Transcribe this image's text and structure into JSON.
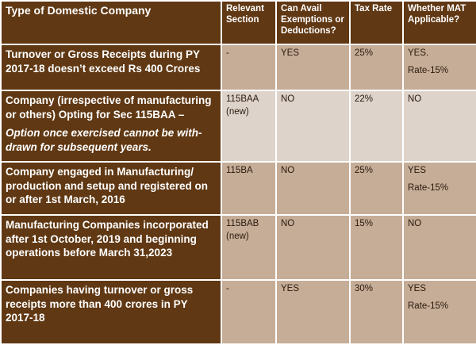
{
  "table": {
    "header": [
      "Type of Domestic Company",
      "Relevant Section",
      "Can Avail Exemptions or Deductions?",
      "Tax Rate",
      "Whether MAT Applicable?"
    ],
    "rows": [
      [
        [
          "Turnover or Gross Receipts during PY 2017-18 doesn’t exceed Rs 400 Crores"
        ],
        [
          "-"
        ],
        [
          "YES"
        ],
        [
          "25%"
        ],
        [
          "YES.",
          "Rate-15%"
        ]
      ],
      [
        [
          "Company (irrespective of manufacturing or others) Opting for Sec 115BAA –",
          "Option once exercised cannot be with-drawn for subsequent years."
        ],
        [
          "115BAA (new)"
        ],
        [
          "NO"
        ],
        [
          "22%"
        ],
        [
          "NO"
        ]
      ],
      [
        [
          "Company engaged in Manufacturing/ production and setup and registered on or after 1st March, 2016"
        ],
        [
          "115BA"
        ],
        [
          "NO"
        ],
        [
          "25%"
        ],
        [
          "YES",
          "Rate-15%"
        ]
      ],
      [
        [
          "Manufacturing Companies incorporated after 1st October, 2019 and beginning operations before March 31,2023"
        ],
        [
          "115BAB (new)"
        ],
        [
          "NO"
        ],
        [
          "15%"
        ],
        [
          "NO"
        ]
      ],
      [
        [
          "Companies  having turnover or gross receipts more than 400 crores in PY 2017-18"
        ],
        [
          "-"
        ],
        [
          "YES"
        ],
        [
          "30%"
        ],
        [
          "YES",
          "Rate-15%"
        ]
      ]
    ]
  }
}
